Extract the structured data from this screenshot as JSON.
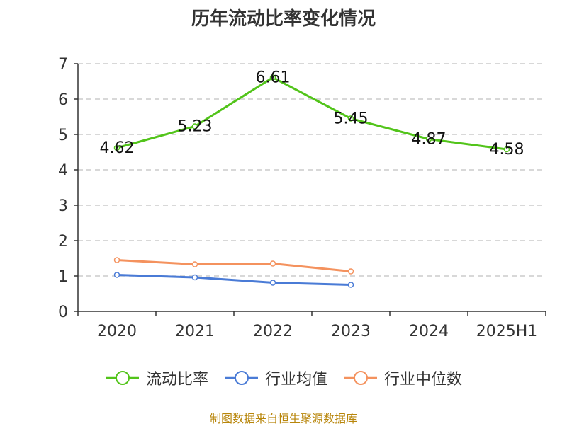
{
  "title": "历年流动比率变化情况",
  "source_note": "制图数据来自恒生聚源数据库",
  "colors": {
    "series_1": "#52c41a",
    "series_2": "#4a7bd6",
    "series_3": "#f4925e",
    "grid": "#cccccc",
    "axis": "#333333"
  },
  "chart_data": {
    "type": "line",
    "title": "历年流动比率变化情况",
    "categories": [
      "2020",
      "2021",
      "2022",
      "2023",
      "2024",
      "2025H1"
    ],
    "ylim": [
      0,
      7
    ],
    "yticks": [
      0,
      1,
      2,
      3,
      4,
      5,
      6,
      7
    ],
    "grid": true,
    "legend_position": "bottom",
    "series": [
      {
        "name": "流动比率",
        "values": [
          4.62,
          5.23,
          6.61,
          5.45,
          4.87,
          4.58
        ],
        "data_labels": [
          "4.62",
          "5.23",
          "6.61",
          "5.45",
          "4.87",
          "4.58"
        ],
        "color": "#52c41a"
      },
      {
        "name": "行业均值",
        "values": [
          1.03,
          0.96,
          0.81,
          0.75,
          null,
          null
        ],
        "color": "#4a7bd6"
      },
      {
        "name": "行业中位数",
        "values": [
          1.45,
          1.33,
          1.35,
          1.13,
          null,
          null
        ],
        "color": "#f4925e"
      }
    ]
  }
}
